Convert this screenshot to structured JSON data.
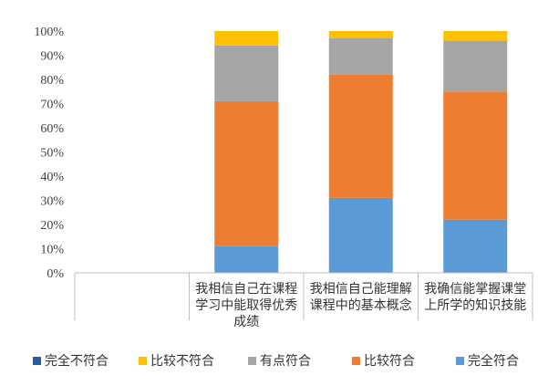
{
  "chart_data": {
    "type": "bar",
    "stacked": true,
    "title": "",
    "xlabel": "",
    "ylabel": "",
    "ylim": [
      0,
      1
    ],
    "y_ticks": [
      "0%",
      "10%",
      "20%",
      "30%",
      "40%",
      "50%",
      "60%",
      "70%",
      "80%",
      "90%",
      "100%"
    ],
    "grid": false,
    "legend_position": "bottom",
    "categories": [
      "",
      "我相信自己在课程学习中能取得优秀成绩",
      "我相信自己能理解课程中的基本概念",
      "我确信能掌握课堂上所学的知识技能"
    ],
    "category_lines": [
      [],
      [
        "我相信自己在课程",
        "学习中能取得优秀",
        "成绩"
      ],
      [
        "我相信自己能理解",
        "课程中的基本概念"
      ],
      [
        "我确信能掌握课堂",
        "上所学的知识技能"
      ]
    ],
    "series": [
      {
        "name": "完全不符合",
        "color": "#2E5A9E",
        "values": [
          0,
          0,
          0,
          0
        ]
      },
      {
        "name": "完全符合",
        "color": "#5B9BD5",
        "values": [
          0,
          0.11,
          0.31,
          0.22
        ]
      },
      {
        "name": "比较符合",
        "color": "#ED7D31",
        "values": [
          0,
          0.6,
          0.51,
          0.53
        ]
      },
      {
        "name": "有点符合",
        "color": "#A5A5A5",
        "values": [
          0,
          0.23,
          0.15,
          0.21
        ]
      },
      {
        "name": "比较不符合",
        "color": "#FFC000",
        "values": [
          0,
          0.06,
          0.03,
          0.04
        ]
      }
    ],
    "legend": [
      {
        "name": "完全不符合",
        "color": "#2E5A9E"
      },
      {
        "name": "比较不符合",
        "color": "#FFC000"
      },
      {
        "name": "有点符合",
        "color": "#A5A5A5"
      },
      {
        "name": "比较符合",
        "color": "#ED7D31"
      },
      {
        "name": "完全符合",
        "color": "#5B9BD5"
      }
    ]
  }
}
